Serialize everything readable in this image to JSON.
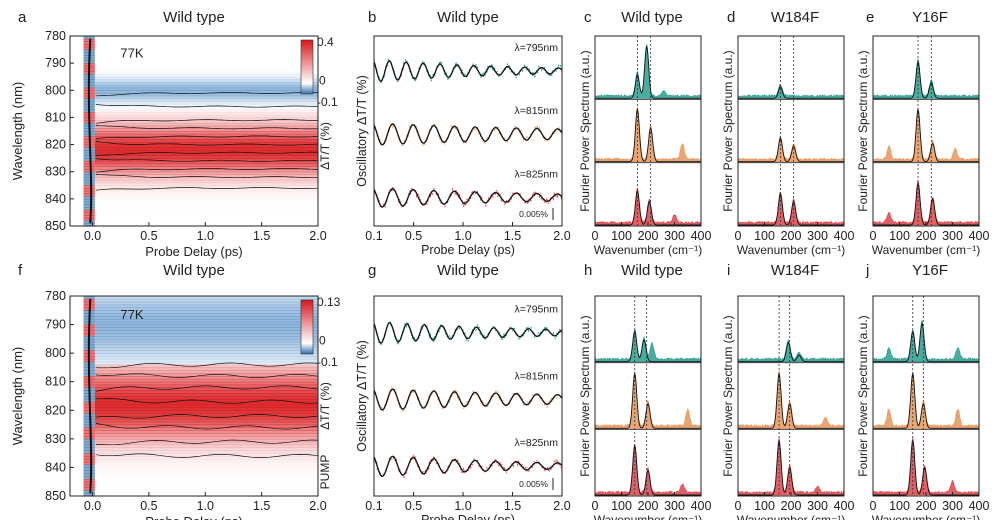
{
  "panels": [
    {
      "letter": "a",
      "title": "Wild type",
      "annotation": "77K",
      "xlabel": "Probe Delay (ps)",
      "ylabel": "Wavelength (nm)",
      "colorbar_label": "ΔT/T (%)",
      "colorbar_max": "0.4",
      "colorbar_zero": "0",
      "colorbar_min": "-0.1"
    },
    {
      "letter": "b",
      "title": "Wild type",
      "xlabel": "Probe Delay (ps)",
      "ylabel": "Oscillatory  ΔT/T (%)",
      "scale_label": "0.005%"
    },
    {
      "letter": "c",
      "title": "Wild type",
      "xlabel": "Wavenumber (cm⁻¹)",
      "ylabel": "Fourier Power Spectrum (a.u.)"
    },
    {
      "letter": "d",
      "title": "W184F",
      "xlabel": "Wavenumber (cm⁻¹)",
      "ylabel": "Fourier Power Spectrum (a.u.)"
    },
    {
      "letter": "e",
      "title": "Y16F",
      "xlabel": "Wavenumber (cm⁻¹)",
      "ylabel": "Fourier Power Spectrum (a.u.)"
    },
    {
      "letter": "f",
      "title": "Wild type",
      "annotation": "77K",
      "xlabel": "Probe Delay (ps)",
      "ylabel": "Wavelength (nm)",
      "colorbar_label": "ΔT/T (%)",
      "colorbar_max": "0.13",
      "colorbar_zero": "0",
      "colorbar_min": "-0.1",
      "side_label": "PUMP"
    },
    {
      "letter": "g",
      "title": "Wild type",
      "xlabel": "Probe Delay (ps)",
      "ylabel": "Oscillatory  ΔT/T (%)",
      "scale_label": "0.005%"
    },
    {
      "letter": "h",
      "title": "Wild type",
      "xlabel": "Wavenumber (cm⁻¹)",
      "ylabel": "Fourier Power Spectrum (a.u.)"
    },
    {
      "letter": "i",
      "title": "W184F",
      "xlabel": "Wavenumber (cm⁻¹)",
      "ylabel": "Fourier Power Spectrum (a.u.)"
    },
    {
      "letter": "j",
      "title": "Y16F",
      "xlabel": "Wavenumber (cm⁻¹)",
      "ylabel": "Fourier Power Spectrum (a.u.)"
    }
  ],
  "colors": {
    "teal": "#2a9d8f",
    "orange": "#e8955a",
    "red": "#d9444a",
    "line": "#111111",
    "map_red": "#d7191c",
    "map_blue": "#3a7dbf"
  },
  "chart_data": [
    {
      "panel": "a",
      "type": "heatmap",
      "xlim": [
        -0.2,
        2.0
      ],
      "ylim": [
        780,
        850
      ],
      "x_ticks": [
        0.0,
        0.5,
        1.0,
        1.5,
        2.0
      ],
      "y_ticks": [
        780,
        790,
        800,
        810,
        820,
        830,
        840,
        850
      ],
      "colorbar": [
        -0.1,
        0,
        0.4
      ],
      "features": [
        {
          "center": 822,
          "width": 9,
          "peak": 0.4,
          "sign": "positive"
        },
        {
          "center": 800,
          "width": 4,
          "peak": -0.1,
          "sign": "negative"
        }
      ]
    },
    {
      "panel": "b",
      "type": "line",
      "xlim": [
        0.1,
        2.0
      ],
      "x_ticks": [
        0.1,
        0.5,
        1.0,
        1.5,
        2.0
      ],
      "series": [
        {
          "name": "λ=795nm",
          "color": "teal",
          "freq_cm": 195,
          "amp": 1.0,
          "decay": 1.4
        },
        {
          "name": "λ=815nm",
          "color": "orange",
          "freq_cm": 160,
          "amp": 1.0,
          "decay": 2.5
        },
        {
          "name": "λ=825nm",
          "color": "red",
          "freq_cm": 160,
          "amp": 0.9,
          "decay": 1.8
        }
      ]
    },
    {
      "panel": "c",
      "type": "area",
      "xlim": [
        0,
        400
      ],
      "x_ticks": [
        0,
        100,
        200,
        300,
        400
      ],
      "ref_lines": [
        160,
        210
      ],
      "series": [
        {
          "color": "teal",
          "peaks": [
            [
              160,
              0.45
            ],
            [
              195,
              1.0
            ],
            [
              260,
              0.1
            ]
          ]
        },
        {
          "color": "orange",
          "peaks": [
            [
              160,
              1.0
            ],
            [
              210,
              0.65
            ],
            [
              330,
              0.3
            ]
          ]
        },
        {
          "color": "red",
          "peaks": [
            [
              160,
              0.65
            ],
            [
              205,
              0.45
            ],
            [
              300,
              0.15
            ]
          ]
        }
      ]
    },
    {
      "panel": "d",
      "type": "area",
      "xlim": [
        0,
        400
      ],
      "x_ticks": [
        0,
        100,
        200,
        300,
        400
      ],
      "ref_lines": [
        160,
        210
      ],
      "series": [
        {
          "color": "teal",
          "peaks": [
            [
              160,
              0.22
            ]
          ]
        },
        {
          "color": "orange",
          "peaks": [
            [
              160,
              0.45
            ],
            [
              210,
              0.3
            ]
          ]
        },
        {
          "color": "red",
          "peaks": [
            [
              160,
              0.6
            ],
            [
              210,
              0.45
            ]
          ]
        }
      ]
    },
    {
      "panel": "e",
      "type": "area",
      "xlim": [
        0,
        400
      ],
      "x_ticks": [
        0,
        100,
        200,
        300,
        400
      ],
      "ref_lines": [
        170,
        220
      ],
      "series": [
        {
          "color": "teal",
          "peaks": [
            [
              170,
              0.7
            ],
            [
              220,
              0.3
            ]
          ]
        },
        {
          "color": "orange",
          "peaks": [
            [
              170,
              1.0
            ],
            [
              225,
              0.35
            ],
            [
              60,
              0.25
            ],
            [
              310,
              0.2
            ]
          ]
        },
        {
          "color": "red",
          "peaks": [
            [
              170,
              0.8
            ],
            [
              225,
              0.5
            ],
            [
              60,
              0.2
            ]
          ]
        }
      ]
    },
    {
      "panel": "f",
      "type": "heatmap",
      "xlim": [
        -0.2,
        2.0
      ],
      "ylim": [
        780,
        850
      ],
      "x_ticks": [
        0.0,
        0.5,
        1.0,
        1.5,
        2.0
      ],
      "y_ticks": [
        780,
        790,
        800,
        810,
        820,
        830,
        840,
        850
      ],
      "colorbar": [
        -0.1,
        0,
        0.13
      ],
      "features": [
        {
          "center": 818,
          "width": 12,
          "peak": 0.13,
          "sign": "positive"
        },
        {
          "center": 790,
          "width": 12,
          "peak": -0.1,
          "sign": "negative"
        }
      ]
    },
    {
      "panel": "g",
      "type": "line",
      "xlim": [
        0.1,
        2.0
      ],
      "x_ticks": [
        0.1,
        0.5,
        1.0,
        1.5,
        2.0
      ],
      "series": [
        {
          "name": "λ=795nm",
          "color": "teal",
          "freq_cm": 190,
          "amp": 1.0,
          "decay": 1.5
        },
        {
          "name": "λ=815nm",
          "color": "orange",
          "freq_cm": 160,
          "amp": 1.0,
          "decay": 2.2
        },
        {
          "name": "λ=825nm",
          "color": "red",
          "freq_cm": 160,
          "amp": 1.0,
          "decay": 1.5
        }
      ]
    },
    {
      "panel": "h",
      "type": "area",
      "xlim": [
        0,
        400
      ],
      "x_ticks": [
        0,
        100,
        200,
        300,
        400
      ],
      "ref_lines": [
        150,
        195
      ],
      "series": [
        {
          "color": "teal",
          "peaks": [
            [
              150,
              0.55
            ],
            [
              185,
              0.4
            ],
            [
              215,
              0.3
            ]
          ]
        },
        {
          "color": "orange",
          "peaks": [
            [
              150,
              1.0
            ],
            [
              200,
              0.45
            ],
            [
              350,
              0.3
            ]
          ]
        },
        {
          "color": "red",
          "peaks": [
            [
              150,
              0.9
            ],
            [
              200,
              0.45
            ],
            [
              330,
              0.15
            ]
          ]
        }
      ]
    },
    {
      "panel": "i",
      "type": "area",
      "xlim": [
        0,
        400
      ],
      "x_ticks": [
        0,
        100,
        200,
        300,
        400
      ],
      "ref_lines": [
        155,
        195
      ],
      "series": [
        {
          "color": "teal",
          "peaks": [
            [
              190,
              0.35
            ],
            [
              230,
              0.12
            ]
          ]
        },
        {
          "color": "orange",
          "peaks": [
            [
              155,
              1.0
            ],
            [
              195,
              0.45
            ],
            [
              330,
              0.15
            ]
          ]
        },
        {
          "color": "red",
          "peaks": [
            [
              155,
              1.0
            ],
            [
              195,
              0.5
            ],
            [
              300,
              0.1
            ]
          ]
        }
      ]
    },
    {
      "panel": "j",
      "type": "area",
      "xlim": [
        0,
        400
      ],
      "x_ticks": [
        0,
        100,
        200,
        300,
        400
      ],
      "ref_lines": [
        150,
        190
      ],
      "series": [
        {
          "color": "teal",
          "peaks": [
            [
              150,
              0.55
            ],
            [
              185,
              0.7
            ],
            [
              60,
              0.2
            ],
            [
              320,
              0.2
            ]
          ]
        },
        {
          "color": "orange",
          "peaks": [
            [
              150,
              1.0
            ],
            [
              190,
              0.45
            ],
            [
              60,
              0.3
            ],
            [
              320,
              0.3
            ]
          ]
        },
        {
          "color": "red",
          "peaks": [
            [
              150,
              1.0
            ],
            [
              195,
              0.5
            ],
            [
              300,
              0.2
            ]
          ]
        }
      ]
    }
  ]
}
